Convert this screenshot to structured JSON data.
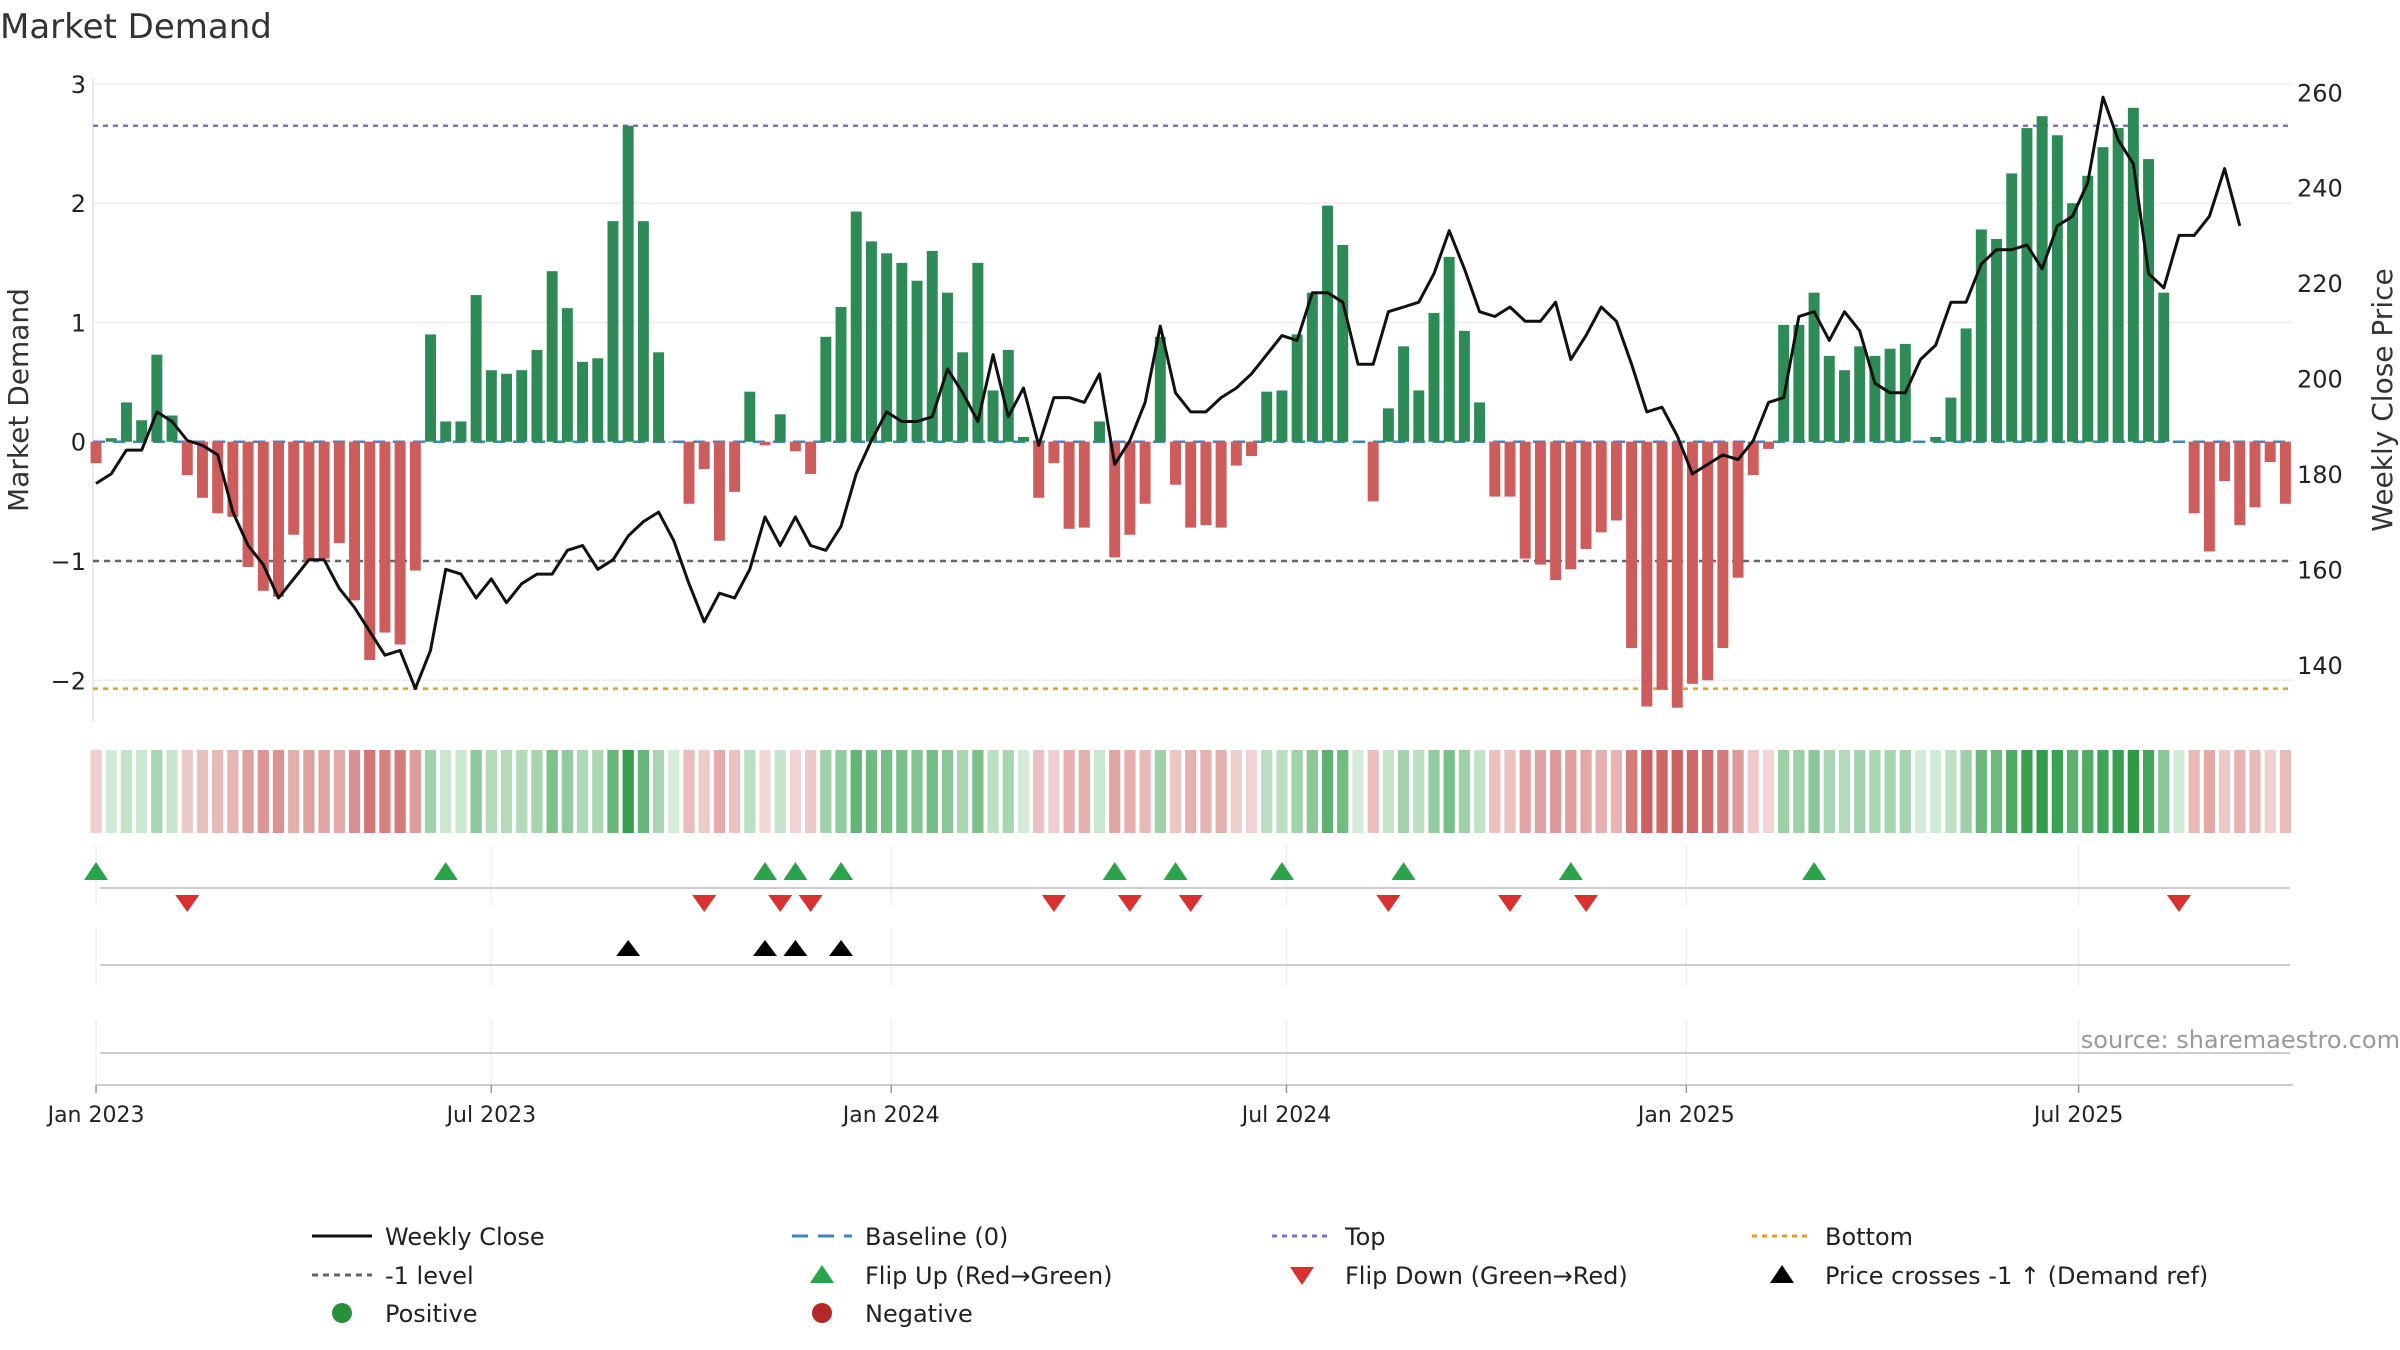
{
  "chart_data": {
    "type": "bar",
    "title": "Market Demand",
    "ylabel_left": "Market Demand",
    "ylabel_right": "Weekly Close Price",
    "source": "source: sharemaestro.com",
    "left_axis": {
      "ylim": [
        -2.35,
        3.05
      ],
      "ticks": [
        3,
        2,
        1,
        0,
        -1,
        -2
      ],
      "tick_labels": [
        "3",
        "2",
        "1",
        "0",
        "−1",
        "−2"
      ]
    },
    "right_axis": {
      "ylim": [
        128,
        263
      ],
      "ticks": [
        260,
        240,
        220,
        200,
        180,
        160,
        140
      ],
      "tick_labels": [
        "260",
        "240",
        "220",
        "200",
        "180",
        "160",
        "140"
      ]
    },
    "x_ticks": [
      {
        "week": 1,
        "label": "Jan 2023"
      },
      {
        "week": 27,
        "label": "Jul 2023"
      },
      {
        "week": 53.3,
        "label": "Jan 2024"
      },
      {
        "week": 79.3,
        "label": "Jul 2024"
      },
      {
        "week": 105.6,
        "label": "Jan 2025"
      },
      {
        "week": 131.4,
        "label": "Jul 2025"
      }
    ],
    "reference_lines": {
      "top": 2.65,
      "bottom": -2.07,
      "minus_one": -1,
      "baseline": 0
    },
    "demand": [
      -0.18,
      0.03,
      0.33,
      0.18,
      0.73,
      0.22,
      -0.28,
      -0.47,
      -0.6,
      -0.63,
      -1.05,
      -1.25,
      -1.3,
      -0.78,
      -1.0,
      -0.98,
      -0.85,
      -1.33,
      -1.83,
      -1.6,
      -1.7,
      -1.08,
      0.9,
      0.17,
      0.17,
      1.23,
      0.6,
      0.57,
      0.6,
      0.77,
      1.43,
      1.12,
      0.67,
      0.7,
      1.85,
      2.65,
      1.85,
      0.75,
      0.0,
      -0.52,
      -0.23,
      -0.83,
      -0.42,
      0.42,
      -0.03,
      0.23,
      -0.08,
      -0.27,
      0.88,
      1.13,
      1.93,
      1.68,
      1.58,
      1.5,
      1.35,
      1.6,
      1.25,
      0.75,
      1.5,
      0.43,
      0.77,
      0.04,
      -0.47,
      -0.18,
      -0.73,
      -0.72,
      0.17,
      -0.97,
      -0.78,
      -0.52,
      0.88,
      -0.36,
      -0.72,
      -0.7,
      -0.72,
      -0.2,
      -0.12,
      0.42,
      0.43,
      0.9,
      1.25,
      1.98,
      1.65,
      0.0,
      -0.5,
      0.28,
      0.8,
      0.43,
      1.08,
      1.55,
      0.93,
      0.33,
      -0.46,
      -0.46,
      -0.98,
      -1.03,
      -1.16,
      -1.07,
      -0.9,
      -0.76,
      -0.66,
      -1.73,
      -2.22,
      -2.08,
      -2.23,
      -2.03,
      -2.0,
      -1.73,
      -1.14,
      -0.28,
      -0.06,
      0.98,
      0.98,
      1.25,
      0.72,
      0.6,
      0.8,
      0.72,
      0.78,
      0.82,
      0.0,
      0.04,
      0.37,
      0.95,
      1.78,
      1.7,
      2.25,
      2.63,
      2.73,
      2.57,
      2.0,
      2.23,
      2.47,
      2.63,
      2.8,
      2.37,
      1.25,
      0.0,
      -0.6,
      -0.92,
      -0.33,
      -0.7,
      -0.55,
      -0.17,
      -0.52
    ],
    "close": [
      178,
      180,
      185,
      185,
      193,
      191,
      187,
      186,
      184,
      172,
      165,
      161,
      154,
      158,
      162,
      162,
      156,
      152,
      147,
      142,
      143,
      135,
      143,
      160,
      159,
      154,
      158,
      153,
      157,
      159,
      159,
      164,
      165,
      160,
      162,
      167,
      170,
      172,
      166,
      157,
      149,
      155,
      154,
      160,
      171,
      165,
      171,
      165,
      164,
      169,
      180,
      187,
      193,
      191,
      191,
      192,
      202,
      197,
      191,
      205,
      192,
      198,
      186,
      196,
      196,
      195,
      201,
      182,
      187,
      195,
      211,
      197,
      193,
      193,
      196,
      198,
      201,
      205,
      209,
      208,
      218,
      218,
      216,
      203,
      203,
      214,
      215,
      216,
      222,
      231,
      223,
      214,
      213,
      215,
      212,
      212,
      216,
      204,
      209,
      215,
      212,
      203,
      193,
      194,
      188,
      180,
      182,
      184,
      183,
      187,
      195,
      196,
      213,
      214,
      208,
      214,
      210,
      199,
      197,
      197,
      204,
      207,
      216,
      216,
      224,
      227,
      227,
      228,
      223,
      232,
      234,
      241,
      259,
      250,
      245,
      222,
      219,
      230,
      230,
      234,
      244,
      232
    ],
    "sign_strip": {
      "positive_color": "#2e9a46",
      "negative_color": "#c04040"
    },
    "flip_up_weeks": [
      1,
      24,
      45,
      47,
      50,
      68,
      72,
      79,
      87,
      98,
      114
    ],
    "flip_down_weeks": [
      7,
      41,
      46,
      48,
      64,
      69,
      73,
      86,
      94,
      99,
      138
    ],
    "price_cross_weeks": [
      36,
      45,
      47,
      50
    ],
    "legend": [
      {
        "key": "weekly_close",
        "label": "Weekly Close",
        "color": "#111111"
      },
      {
        "key": "baseline",
        "label": "Baseline (0)",
        "color": "#3b87c4"
      },
      {
        "key": "top",
        "label": "Top",
        "color": "#7b6fd0"
      },
      {
        "key": "bottom",
        "label": "Bottom",
        "color": "#e69a2e"
      },
      {
        "key": "minus_one",
        "label": "-1 level",
        "color": "#666666"
      },
      {
        "key": "flip_up",
        "label": "Flip Up (Red→Green)",
        "color": "#2aa34a"
      },
      {
        "key": "flip_down",
        "label": "Flip Down (Green→Red)",
        "color": "#d8312f"
      },
      {
        "key": "price_cross",
        "label": "Price crosses -1 ↑ (Demand ref)",
        "color": "#000000"
      },
      {
        "key": "positive",
        "label": "Positive",
        "color": "#2a8f3a"
      },
      {
        "key": "negative",
        "label": "Negative",
        "color": "#b52828"
      }
    ],
    "colors": {
      "bar_positive": "#2e8b57",
      "bar_negative": "#cd5c5c",
      "price_line": "#111111"
    }
  }
}
